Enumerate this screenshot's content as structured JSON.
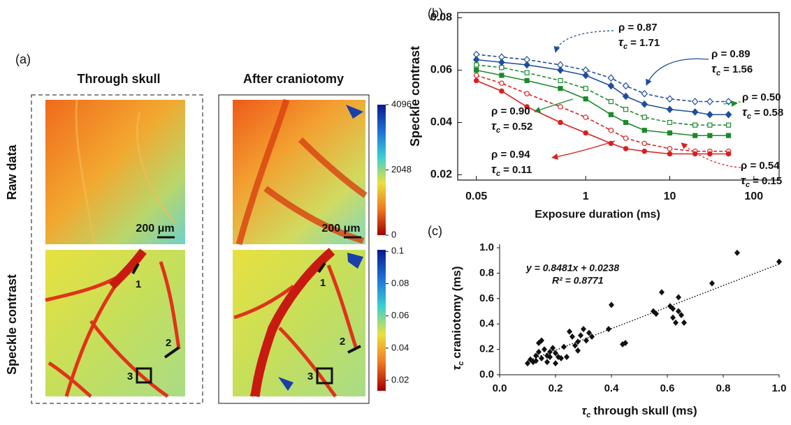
{
  "panel_a": {
    "panel_label": "(a)",
    "columns": [
      "Through skull",
      "After craniotomy"
    ],
    "rows": [
      "Raw data",
      "Speckle contrast"
    ],
    "scale_bar": "200 μm",
    "region_labels": [
      "1",
      "2",
      "3"
    ],
    "colorbars": [
      {
        "lim": [
          0,
          4096
        ],
        "ticks": [
          0,
          2048,
          4096
        ]
      },
      {
        "lim": [
          0.0135,
          0.101
        ],
        "ticks": [
          0.02,
          0.04,
          0.06,
          0.08,
          0.1
        ]
      }
    ]
  },
  "chart_data": [
    {
      "type": "line",
      "panel_label": "(b)",
      "x_label": "Exposure duration (ms)",
      "y_label": "Speckle contrast",
      "log_x": true,
      "x": [
        0.05,
        0.1,
        0.2,
        0.5,
        1,
        2,
        3,
        5,
        10,
        20,
        30,
        50
      ],
      "xlim": [
        0.03,
        200
      ],
      "xticks": [
        0.05,
        1,
        10,
        100
      ],
      "ylim": [
        0.018,
        0.082
      ],
      "yticks": [
        0.02,
        0.04,
        0.06,
        0.08
      ],
      "series": [
        {
          "color": "#1f4e9c",
          "marker": "diamond",
          "filled": false,
          "dashed": true,
          "values": [
            0.066,
            0.065,
            0.064,
            0.062,
            0.06,
            0.057,
            0.054,
            0.051,
            0.049,
            0.048,
            0.048,
            0.048
          ]
        },
        {
          "color": "#1f4e9c",
          "marker": "diamond",
          "filled": true,
          "dashed": false,
          "values": [
            0.064,
            0.063,
            0.062,
            0.06,
            0.058,
            0.054,
            0.05,
            0.047,
            0.045,
            0.044,
            0.043,
            0.043
          ]
        },
        {
          "color": "#1a8a2a",
          "marker": "square",
          "filled": false,
          "dashed": true,
          "values": [
            0.062,
            0.061,
            0.059,
            0.056,
            0.053,
            0.048,
            0.045,
            0.042,
            0.04,
            0.039,
            0.039,
            0.039
          ]
        },
        {
          "color": "#1a8a2a",
          "marker": "square",
          "filled": true,
          "dashed": false,
          "values": [
            0.06,
            0.058,
            0.056,
            0.053,
            0.049,
            0.043,
            0.04,
            0.037,
            0.036,
            0.035,
            0.035,
            0.035
          ]
        },
        {
          "color": "#d9201f",
          "marker": "circle",
          "filled": false,
          "dashed": true,
          "values": [
            0.058,
            0.055,
            0.051,
            0.046,
            0.042,
            0.037,
            0.034,
            0.032,
            0.03,
            0.029,
            0.029,
            0.029
          ]
        },
        {
          "color": "#d9201f",
          "marker": "circle",
          "filled": true,
          "dashed": false,
          "values": [
            0.056,
            0.052,
            0.046,
            0.04,
            0.036,
            0.032,
            0.03,
            0.029,
            0.028,
            0.028,
            0.028,
            0.028
          ]
        }
      ],
      "tau_symbol": "τ",
      "tau_subscript": "c",
      "annotations": [
        {
          "rho": "ρ = 0.87",
          "tau": "= 1.71"
        },
        {
          "rho": "ρ = 0.89",
          "tau": "= 1.56"
        },
        {
          "rho": "ρ = 0.50",
          "tau": "= 0.58"
        },
        {
          "rho": "ρ = 0.90",
          "tau": "= 0.52"
        },
        {
          "rho": "ρ = 0.94",
          "tau": "= 0.11"
        },
        {
          "rho": "ρ = 0.54",
          "tau": "= 0.15"
        }
      ]
    },
    {
      "type": "scatter",
      "panel_label": "(c)",
      "tau_symbol": "τ",
      "tau_subscript": "c",
      "x_label": "through skull (ms)",
      "y_label": "craniotomy (ms)",
      "equation": "y = 0.8481x + 0.0238",
      "r_squared": "R² = 0.8771",
      "fit": {
        "slope": 0.8481,
        "intercept": 0.0238
      },
      "xlim": [
        0,
        1.0
      ],
      "ylim": [
        0,
        1.0
      ],
      "xticks": [
        {
          "value": 0,
          "label": "0.0"
        },
        0.2,
        0.4,
        0.6,
        0.8,
        {
          "value": 1,
          "label": "1.0"
        }
      ],
      "yticks": [
        {
          "value": 0,
          "label": "0.0"
        },
        0.2,
        0.4,
        0.6,
        0.8,
        {
          "value": 1,
          "label": "1.0"
        }
      ],
      "color": "#111111",
      "x": [
        0.1,
        0.11,
        0.12,
        0.13,
        0.13,
        0.14,
        0.14,
        0.15,
        0.15,
        0.16,
        0.17,
        0.17,
        0.18,
        0.18,
        0.19,
        0.2,
        0.2,
        0.21,
        0.22,
        0.23,
        0.24,
        0.25,
        0.26,
        0.27,
        0.28,
        0.28,
        0.29,
        0.3,
        0.31,
        0.32,
        0.33,
        0.39,
        0.4,
        0.44,
        0.45,
        0.55,
        0.56,
        0.58,
        0.61,
        0.62,
        0.62,
        0.63,
        0.64,
        0.64,
        0.65,
        0.66,
        0.76,
        0.85,
        1.0
      ],
      "values": [
        0.09,
        0.12,
        0.1,
        0.11,
        0.15,
        0.18,
        0.25,
        0.27,
        0.13,
        0.2,
        0.15,
        0.1,
        0.18,
        0.14,
        0.21,
        0.17,
        0.09,
        0.14,
        0.13,
        0.22,
        0.14,
        0.34,
        0.3,
        0.23,
        0.19,
        0.26,
        0.31,
        0.36,
        0.27,
        0.33,
        0.3,
        0.36,
        0.55,
        0.24,
        0.25,
        0.5,
        0.48,
        0.65,
        0.54,
        0.52,
        0.45,
        0.41,
        0.61,
        0.5,
        0.47,
        0.41,
        0.72,
        0.96,
        0.89
      ]
    }
  ]
}
